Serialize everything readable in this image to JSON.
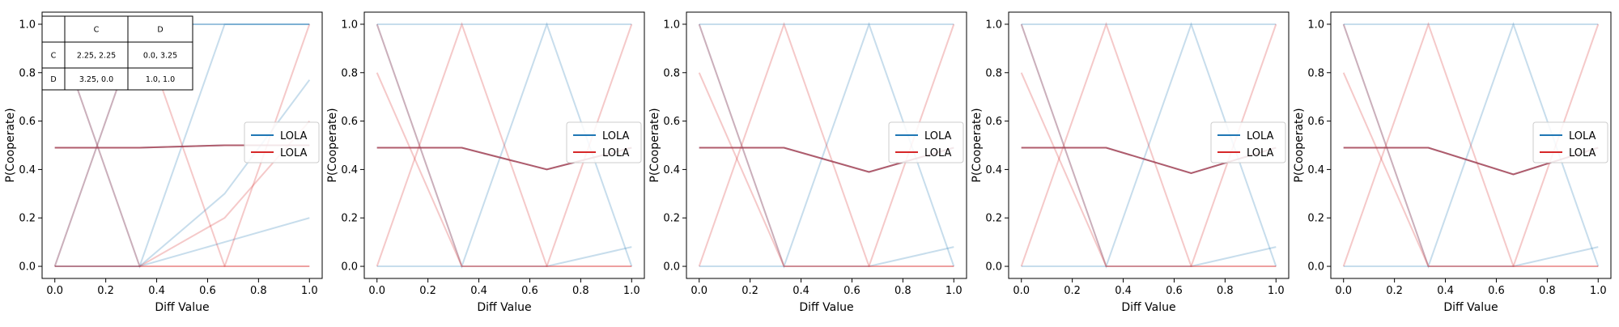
{
  "figure": {
    "payoff_table": {
      "headers": [
        "",
        "C",
        "D"
      ],
      "rows": [
        [
          "C",
          "2.25, 2.25",
          "0.0, 3.25"
        ],
        [
          "D",
          "3.25, 0.0",
          "1.0, 1.0"
        ]
      ]
    }
  },
  "chart_data": [
    {
      "type": "line",
      "xlabel": "Diff Value",
      "ylabel": "P(Cooperate)",
      "xlim": [
        -0.05,
        1.05
      ],
      "ylim": [
        -0.05,
        1.05
      ],
      "xticks": [
        "0.0",
        "0.2",
        "0.4",
        "0.6",
        "0.8",
        "1.0"
      ],
      "yticks": [
        "0.0",
        "0.2",
        "0.4",
        "0.6",
        "0.8",
        "1.0"
      ],
      "grid": false,
      "legend": {
        "position": "right",
        "entries": [
          {
            "label": "LOLA",
            "color": "#1f77b4"
          },
          {
            "label": "LOLA",
            "color": "#d62728"
          }
        ]
      },
      "x": [
        0.0,
        0.333,
        0.667,
        1.0
      ],
      "series": [
        {
          "color": "#1f77b4",
          "values": [
            0.49,
            0.49,
            0.5,
            0.5
          ],
          "role": "mean"
        },
        {
          "color": "#d62728",
          "values": [
            0.49,
            0.49,
            0.5,
            0.5
          ],
          "role": "mean"
        }
      ],
      "faint_runs": [
        {
          "color": "#1f77b4",
          "values": [
            1.0,
            0.0,
            1.0,
            1.0
          ]
        },
        {
          "color": "#1f77b4",
          "values": [
            0.0,
            1.0,
            1.0,
            1.0
          ]
        },
        {
          "color": "#1f77b4",
          "values": [
            1.0,
            1.0,
            1.0,
            1.0
          ]
        },
        {
          "color": "#1f77b4",
          "values": [
            0.0,
            0.0,
            0.3,
            0.77
          ]
        },
        {
          "color": "#1f77b4",
          "values": [
            0.0,
            0.0,
            0.1,
            0.2
          ]
        },
        {
          "color": "#d62728",
          "values": [
            1.0,
            0.0,
            0.0,
            1.0
          ]
        },
        {
          "color": "#d62728",
          "values": [
            0.0,
            1.0,
            0.0,
            0.0
          ]
        },
        {
          "color": "#d62728",
          "values": [
            0.0,
            0.0,
            0.0,
            0.0
          ]
        },
        {
          "color": "#d62728",
          "values": [
            0.0,
            0.0,
            0.2,
            0.6
          ]
        }
      ]
    },
    {
      "type": "line",
      "xlabel": "Diff Value",
      "ylabel": "P(Cooperate)",
      "xlim": [
        -0.05,
        1.05
      ],
      "ylim": [
        -0.05,
        1.05
      ],
      "xticks": [
        "0.0",
        "0.2",
        "0.4",
        "0.6",
        "0.8",
        "1.0"
      ],
      "yticks": [
        "0.0",
        "0.2",
        "0.4",
        "0.6",
        "0.8",
        "1.0"
      ],
      "grid": false,
      "legend": {
        "position": "right",
        "entries": [
          {
            "label": "LOLA",
            "color": "#1f77b4"
          },
          {
            "label": "LOLA",
            "color": "#d62728"
          }
        ]
      },
      "x": [
        0.0,
        0.333,
        0.667,
        1.0
      ],
      "series": [
        {
          "color": "#1f77b4",
          "values": [
            0.49,
            0.49,
            0.4,
            0.49
          ],
          "role": "mean"
        },
        {
          "color": "#d62728",
          "values": [
            0.49,
            0.49,
            0.4,
            0.49
          ],
          "role": "mean"
        }
      ],
      "faint_runs": [
        {
          "color": "#1f77b4",
          "values": [
            1.0,
            0.0,
            1.0,
            0.0
          ]
        },
        {
          "color": "#1f77b4",
          "values": [
            1.0,
            1.0,
            1.0,
            1.0
          ]
        },
        {
          "color": "#1f77b4",
          "values": [
            0.0,
            0.0,
            0.0,
            0.08
          ]
        },
        {
          "color": "#d62728",
          "values": [
            1.0,
            0.0,
            0.0,
            1.0
          ]
        },
        {
          "color": "#d62728",
          "values": [
            0.0,
            1.0,
            0.0,
            0.0
          ]
        },
        {
          "color": "#d62728",
          "values": [
            0.8,
            0.0,
            0.0,
            0.0
          ]
        }
      ]
    },
    {
      "type": "line",
      "xlabel": "Diff Value",
      "ylabel": "P(Cooperate)",
      "xlim": [
        -0.05,
        1.05
      ],
      "ylim": [
        -0.05,
        1.05
      ],
      "xticks": [
        "0.0",
        "0.2",
        "0.4",
        "0.6",
        "0.8",
        "1.0"
      ],
      "yticks": [
        "0.0",
        "0.2",
        "0.4",
        "0.6",
        "0.8",
        "1.0"
      ],
      "grid": false,
      "legend": {
        "position": "right",
        "entries": [
          {
            "label": "LOLA",
            "color": "#1f77b4"
          },
          {
            "label": "LOLA",
            "color": "#d62728"
          }
        ]
      },
      "x": [
        0.0,
        0.333,
        0.667,
        1.0
      ],
      "series": [
        {
          "color": "#1f77b4",
          "values": [
            0.49,
            0.49,
            0.39,
            0.49
          ],
          "role": "mean"
        },
        {
          "color": "#d62728",
          "values": [
            0.49,
            0.49,
            0.39,
            0.49
          ],
          "role": "mean"
        }
      ],
      "faint_runs": [
        {
          "color": "#1f77b4",
          "values": [
            1.0,
            0.0,
            1.0,
            0.0
          ]
        },
        {
          "color": "#1f77b4",
          "values": [
            1.0,
            1.0,
            1.0,
            1.0
          ]
        },
        {
          "color": "#1f77b4",
          "values": [
            0.0,
            0.0,
            0.0,
            0.08
          ]
        },
        {
          "color": "#d62728",
          "values": [
            1.0,
            0.0,
            0.0,
            1.0
          ]
        },
        {
          "color": "#d62728",
          "values": [
            0.0,
            1.0,
            0.0,
            0.0
          ]
        },
        {
          "color": "#d62728",
          "values": [
            0.8,
            0.0,
            0.0,
            0.0
          ]
        }
      ]
    },
    {
      "type": "line",
      "xlabel": "Diff Value",
      "ylabel": "P(Cooperate)",
      "xlim": [
        -0.05,
        1.05
      ],
      "ylim": [
        -0.05,
        1.05
      ],
      "xticks": [
        "0.0",
        "0.2",
        "0.4",
        "0.6",
        "0.8",
        "1.0"
      ],
      "yticks": [
        "0.0",
        "0.2",
        "0.4",
        "0.6",
        "0.8",
        "1.0"
      ],
      "grid": false,
      "legend": {
        "position": "right",
        "entries": [
          {
            "label": "LOLA",
            "color": "#1f77b4"
          },
          {
            "label": "LOLA",
            "color": "#d62728"
          }
        ]
      },
      "x": [
        0.0,
        0.333,
        0.667,
        1.0
      ],
      "series": [
        {
          "color": "#1f77b4",
          "values": [
            0.49,
            0.49,
            0.385,
            0.49
          ],
          "role": "mean"
        },
        {
          "color": "#d62728",
          "values": [
            0.49,
            0.49,
            0.385,
            0.49
          ],
          "role": "mean"
        }
      ],
      "faint_runs": [
        {
          "color": "#1f77b4",
          "values": [
            1.0,
            0.0,
            1.0,
            0.0
          ]
        },
        {
          "color": "#1f77b4",
          "values": [
            1.0,
            1.0,
            1.0,
            1.0
          ]
        },
        {
          "color": "#1f77b4",
          "values": [
            0.0,
            0.0,
            0.0,
            0.08
          ]
        },
        {
          "color": "#d62728",
          "values": [
            1.0,
            0.0,
            0.0,
            1.0
          ]
        },
        {
          "color": "#d62728",
          "values": [
            0.0,
            1.0,
            0.0,
            0.0
          ]
        },
        {
          "color": "#d62728",
          "values": [
            0.8,
            0.0,
            0.0,
            0.0
          ]
        }
      ]
    },
    {
      "type": "line",
      "xlabel": "Diff Value",
      "ylabel": "P(Cooperate)",
      "xlim": [
        -0.05,
        1.05
      ],
      "ylim": [
        -0.05,
        1.05
      ],
      "xticks": [
        "0.0",
        "0.2",
        "0.4",
        "0.6",
        "0.8",
        "1.0"
      ],
      "yticks": [
        "0.0",
        "0.2",
        "0.4",
        "0.6",
        "0.8",
        "1.0"
      ],
      "grid": false,
      "legend": {
        "position": "right",
        "entries": [
          {
            "label": "LOLA",
            "color": "#1f77b4"
          },
          {
            "label": "LOLA",
            "color": "#d62728"
          }
        ]
      },
      "x": [
        0.0,
        0.333,
        0.667,
        1.0
      ],
      "series": [
        {
          "color": "#1f77b4",
          "values": [
            0.49,
            0.49,
            0.38,
            0.49
          ],
          "role": "mean"
        },
        {
          "color": "#d62728",
          "values": [
            0.49,
            0.49,
            0.38,
            0.49
          ],
          "role": "mean"
        }
      ],
      "faint_runs": [
        {
          "color": "#1f77b4",
          "values": [
            1.0,
            0.0,
            1.0,
            0.0
          ]
        },
        {
          "color": "#1f77b4",
          "values": [
            1.0,
            1.0,
            1.0,
            1.0
          ]
        },
        {
          "color": "#1f77b4",
          "values": [
            0.0,
            0.0,
            0.0,
            0.08
          ]
        },
        {
          "color": "#d62728",
          "values": [
            1.0,
            0.0,
            0.0,
            1.0
          ]
        },
        {
          "color": "#d62728",
          "values": [
            0.0,
            1.0,
            0.0,
            0.0
          ]
        },
        {
          "color": "#d62728",
          "values": [
            0.8,
            0.0,
            0.0,
            0.0
          ]
        }
      ]
    }
  ]
}
